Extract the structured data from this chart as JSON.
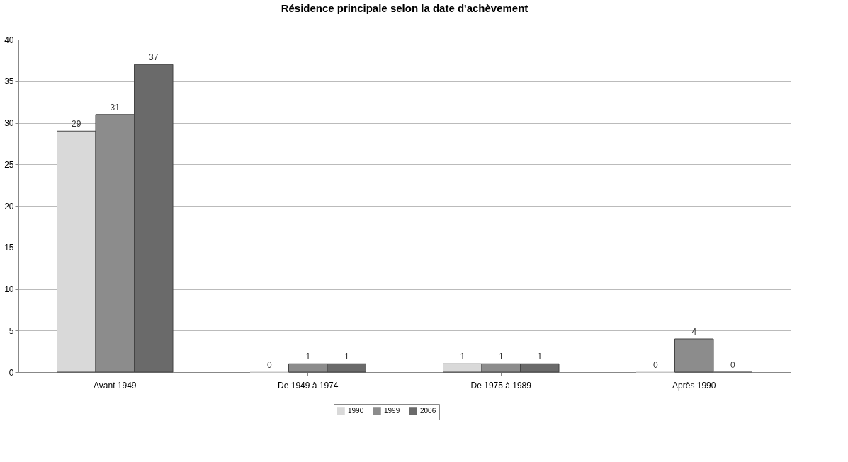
{
  "chart_data": {
    "type": "bar",
    "title": "Résidence principale selon la date d'achèvement",
    "categories": [
      "Avant 1949",
      "De 1949 à 1974",
      "De 1975 à 1989",
      "Après 1990"
    ],
    "series": [
      {
        "name": "1990",
        "color": "#d9d9d9",
        "values": [
          29,
          0,
          1,
          0
        ]
      },
      {
        "name": "1999",
        "color": "#8c8c8c",
        "values": [
          31,
          1,
          1,
          4
        ]
      },
      {
        "name": "2006",
        "color": "#6a6a6a",
        "values": [
          37,
          1,
          1,
          0
        ]
      }
    ],
    "ylim": [
      0,
      40
    ],
    "yticks": [
      0,
      5,
      10,
      15,
      20,
      25,
      30,
      35,
      40
    ],
    "grid": "y",
    "legend": "bottom",
    "data_labels": true
  }
}
